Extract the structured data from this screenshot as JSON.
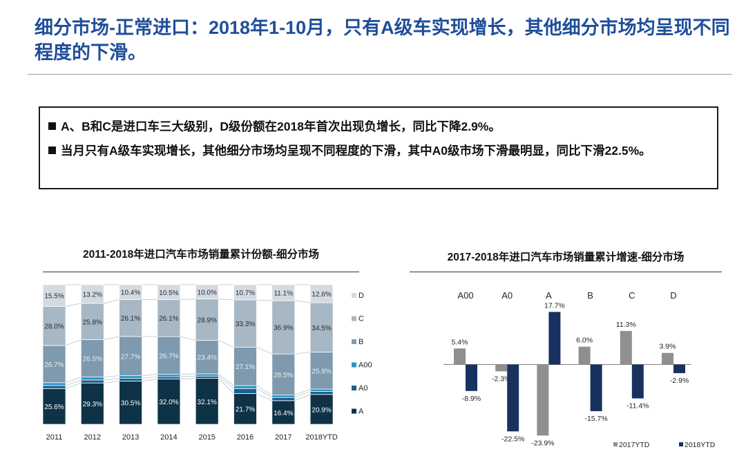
{
  "page": {
    "title": "细分市场-正常进口：2018年1-10月，只有A级车实现增长，其他细分市场均呈现不同程度的下滑。"
  },
  "summary": {
    "bullets": [
      "A、B和C是进口车三大级别，D级份额在2018年首次出现负增长，同比下降2.9%。",
      "当月只有A级车实现增长，其他细分市场均呈现不同程度的下滑，其中A0级市场下滑最明显，同比下滑22.5%。"
    ]
  },
  "colors": {
    "title": "#1f4e9a",
    "A": "#0e3347",
    "A0": "#1c5f8a",
    "A00": "#2996c9",
    "B": "#7f9aae",
    "C": "#a7b7c4",
    "D": "#d3dae2",
    "ytd2017": "#8f8f8f",
    "ytd2018": "#17325f"
  },
  "chart_data": [
    {
      "type": "bar",
      "stacked": true,
      "title": "2011-2018年进口汽车市场销量累计份额-细分市场",
      "categories": [
        "2011",
        "2012",
        "2013",
        "2014",
        "2015",
        "2016",
        "2017",
        "2018YTD"
      ],
      "ylim": [
        0,
        100
      ],
      "legend_position": "right",
      "series": [
        {
          "name": "A",
          "values": [
            25.6,
            29.3,
            30.5,
            32.0,
            32.1,
            21.7,
            16.4,
            20.9
          ],
          "labels": [
            "25.6%",
            "29.3%",
            "30.5%",
            "32.0%",
            "32.1%",
            "21.7%",
            "16.4%",
            "20.9%"
          ]
        },
        {
          "name": "A0",
          "values": [
            2.2,
            2.1,
            1.9,
            1.6,
            1.6,
            3.5,
            2.2,
            2.1
          ],
          "labels": []
        },
        {
          "name": "A00",
          "values": [
            2.0,
            2.1,
            1.9,
            1.7,
            1.6,
            2.1,
            1.7,
            1.6
          ],
          "labels": []
        },
        {
          "name": "B",
          "values": [
            26.7,
            26.5,
            27.7,
            26.7,
            23.4,
            27.1,
            28.5,
            25.9
          ],
          "labels": [
            "26.7%",
            "26.5%",
            "27.7%",
            "26.7%",
            "23.4%",
            "27.1%",
            "28.5%",
            "25.9%"
          ]
        },
        {
          "name": "C",
          "values": [
            28.0,
            25.8,
            26.1,
            26.1,
            28.9,
            33.3,
            36.9,
            34.5
          ],
          "labels": [
            "28.0%",
            "25.8%",
            "26.1%",
            "26.1%",
            "28.9%",
            "33.3%",
            "36.9%",
            "34.5%"
          ]
        },
        {
          "name": "D",
          "values": [
            15.5,
            13.2,
            10.4,
            10.5,
            10.0,
            10.7,
            11.1,
            12.6
          ],
          "labels": [
            "15.5%",
            "13.2%",
            "10.4%",
            "10.5%",
            "10.0%",
            "10.7%",
            "11.1%",
            "12.6%"
          ]
        }
      ],
      "legend": [
        "D",
        "C",
        "B",
        "A00",
        "A0",
        "A"
      ]
    },
    {
      "type": "bar",
      "title": "2017-2018年进口汽车市场销量累计增速-细分市场",
      "categories": [
        "A00",
        "A0",
        "A",
        "B",
        "C",
        "D"
      ],
      "ylim": [
        -25,
        20
      ],
      "legend_position": "bottom-right",
      "series": [
        {
          "name": "2017YTD",
          "values": [
            5.4,
            -2.3,
            -23.9,
            6.0,
            11.3,
            3.9
          ],
          "labels": [
            "5.4%",
            "-2.3%",
            "-23.9%",
            "6.0%",
            "11.3%",
            "3.9%"
          ]
        },
        {
          "name": "2018YTD",
          "values": [
            -8.9,
            -22.5,
            17.7,
            -15.7,
            -11.4,
            -2.9
          ],
          "labels": [
            "-8.9%",
            "-22.5%",
            "17.7%",
            "-15.7%",
            "-11.4%",
            "-2.9%"
          ]
        }
      ]
    }
  ]
}
